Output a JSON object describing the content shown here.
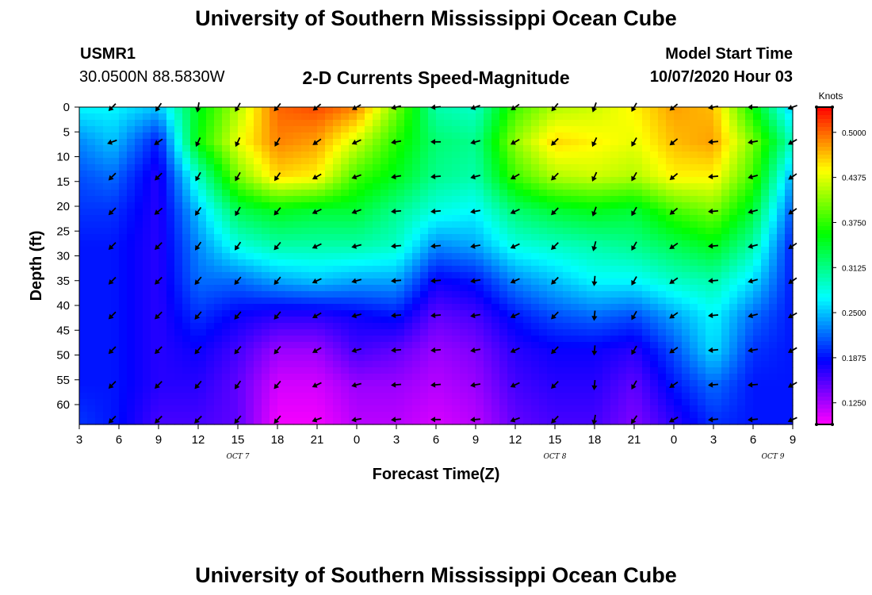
{
  "titles": {
    "top": "University of Southern Mississippi Ocean Cube",
    "bottom": "University of Southern Mississippi Ocean Cube"
  },
  "header": {
    "station": "USMR1",
    "coords": "30.0500N 88.5830W",
    "plot_title": "2-D Currents Speed-Magnitude",
    "model_start_label": "Model Start Time",
    "model_start_value": "10/07/2020 Hour 03"
  },
  "chart_data": {
    "type": "heatmap",
    "title": "2-D Currents Speed-Magnitude",
    "xlabel": "Forecast Time(Z)",
    "ylabel": "Depth (ft)",
    "x_ticks": [
      "3",
      "6",
      "9",
      "12",
      "15",
      "18",
      "21",
      "0",
      "3",
      "6",
      "9",
      "12",
      "15",
      "18",
      "21",
      "0",
      "3",
      "6",
      "9"
    ],
    "x_range_hours": [
      0,
      54
    ],
    "date_labels": [
      {
        "text": "OCT 7",
        "hour": 12
      },
      {
        "text": "OCT 8",
        "hour": 36
      },
      {
        "text": "OCT 9",
        "hour": 52.5
      }
    ],
    "y_ticks": [
      "0",
      "5",
      "10",
      "15",
      "20",
      "25",
      "30",
      "35",
      "40",
      "45",
      "50",
      "55",
      "60"
    ],
    "y_range_ft": [
      0,
      64
    ],
    "colorbar": {
      "label": "Knots",
      "ticks": [
        "0.5000",
        "0.4375",
        "0.3750",
        "0.3125",
        "0.2500",
        "0.1875",
        "0.1250"
      ],
      "tick_values": [
        0.5,
        0.4375,
        0.375,
        0.3125,
        0.25,
        0.1875,
        0.125
      ],
      "min": 0.095,
      "max": 0.535
    },
    "time_hours": [
      0,
      2.5,
      6,
      9,
      12,
      15,
      18,
      21,
      24,
      27,
      30,
      33,
      36,
      39,
      42,
      45,
      48,
      51,
      54
    ],
    "depths_ft": [
      0,
      7,
      14,
      21,
      28,
      35,
      42,
      49,
      56,
      63
    ],
    "speed_knots": [
      [
        0.27,
        0.23,
        0.21,
        0.2,
        0.19,
        0.19,
        0.19,
        0.19,
        0.19,
        0.2
      ],
      [
        0.27,
        0.25,
        0.22,
        0.2,
        0.19,
        0.19,
        0.19,
        0.19,
        0.19,
        0.19
      ],
      [
        0.25,
        0.19,
        0.17,
        0.17,
        0.17,
        0.17,
        0.17,
        0.17,
        0.17,
        0.16
      ],
      [
        0.35,
        0.36,
        0.29,
        0.25,
        0.23,
        0.22,
        0.2,
        0.18,
        0.17,
        0.16
      ],
      [
        0.42,
        0.44,
        0.4,
        0.33,
        0.28,
        0.22,
        0.18,
        0.16,
        0.15,
        0.15
      ],
      [
        0.5,
        0.49,
        0.46,
        0.35,
        0.3,
        0.24,
        0.17,
        0.13,
        0.11,
        0.1
      ],
      [
        0.51,
        0.48,
        0.45,
        0.34,
        0.3,
        0.25,
        0.17,
        0.13,
        0.11,
        0.1
      ],
      [
        0.49,
        0.43,
        0.38,
        0.34,
        0.3,
        0.24,
        0.18,
        0.16,
        0.13,
        0.12
      ],
      [
        0.4,
        0.37,
        0.35,
        0.31,
        0.29,
        0.24,
        0.19,
        0.15,
        0.13,
        0.12
      ],
      [
        0.3,
        0.32,
        0.31,
        0.28,
        0.23,
        0.18,
        0.15,
        0.13,
        0.12,
        0.11
      ],
      [
        0.29,
        0.31,
        0.3,
        0.27,
        0.24,
        0.19,
        0.16,
        0.14,
        0.13,
        0.12
      ],
      [
        0.38,
        0.41,
        0.38,
        0.32,
        0.28,
        0.23,
        0.19,
        0.17,
        0.16,
        0.15
      ],
      [
        0.42,
        0.46,
        0.42,
        0.34,
        0.29,
        0.25,
        0.21,
        0.18,
        0.17,
        0.16
      ],
      [
        0.43,
        0.45,
        0.43,
        0.35,
        0.3,
        0.27,
        0.22,
        0.18,
        0.17,
        0.16
      ],
      [
        0.45,
        0.44,
        0.42,
        0.34,
        0.31,
        0.27,
        0.21,
        0.17,
        0.15,
        0.14
      ],
      [
        0.48,
        0.47,
        0.45,
        0.38,
        0.33,
        0.29,
        0.24,
        0.21,
        0.19,
        0.17
      ],
      [
        0.47,
        0.48,
        0.45,
        0.4,
        0.35,
        0.3,
        0.27,
        0.26,
        0.22,
        0.2
      ],
      [
        0.36,
        0.4,
        0.38,
        0.34,
        0.3,
        0.26,
        0.22,
        0.2,
        0.19,
        0.19
      ],
      [
        0.25,
        0.29,
        0.24,
        0.21,
        0.19,
        0.19,
        0.19,
        0.19,
        0.19,
        0.19
      ]
    ],
    "arrow_times_hours": [
      2.5,
      6,
      9,
      12,
      15,
      18,
      21,
      24,
      27,
      30,
      33,
      36,
      39,
      42,
      45,
      48,
      51,
      54
    ],
    "arrow_depths_ft": [
      0,
      7,
      14,
      21,
      28,
      35,
      42,
      49,
      56,
      63
    ],
    "arrow_direction_deg_from_east": [
      [
        225,
        200,
        225,
        225,
        225,
        225,
        225,
        225,
        225,
        225
      ],
      [
        235,
        215,
        225,
        220,
        225,
        225,
        225,
        225,
        225,
        225
      ],
      [
        260,
        245,
        240,
        235,
        235,
        230,
        230,
        230,
        230,
        225
      ],
      [
        240,
        245,
        240,
        240,
        235,
        230,
        230,
        230,
        235,
        230
      ],
      [
        230,
        240,
        235,
        230,
        230,
        230,
        230,
        230,
        230,
        230
      ],
      [
        220,
        215,
        210,
        205,
        205,
        205,
        210,
        210,
        205,
        200
      ],
      [
        210,
        205,
        200,
        200,
        195,
        195,
        195,
        195,
        195,
        190
      ],
      [
        195,
        190,
        190,
        185,
        185,
        185,
        185,
        185,
        185,
        185
      ],
      [
        185,
        180,
        185,
        185,
        185,
        185,
        185,
        185,
        185,
        180
      ],
      [
        200,
        195,
        195,
        190,
        190,
        190,
        190,
        190,
        190,
        185
      ],
      [
        215,
        210,
        210,
        205,
        205,
        205,
        205,
        205,
        205,
        200
      ],
      [
        230,
        225,
        225,
        225,
        225,
        225,
        225,
        225,
        225,
        225
      ],
      [
        250,
        245,
        245,
        250,
        255,
        265,
        265,
        265,
        265,
        260
      ],
      [
        240,
        240,
        240,
        240,
        240,
        240,
        240,
        240,
        240,
        235
      ],
      [
        220,
        220,
        220,
        220,
        215,
        215,
        215,
        215,
        215,
        210
      ],
      [
        190,
        185,
        185,
        185,
        185,
        185,
        185,
        185,
        185,
        185
      ],
      [
        180,
        190,
        195,
        195,
        195,
        195,
        195,
        190,
        185,
        185
      ],
      [
        200,
        210,
        215,
        215,
        215,
        215,
        210,
        210,
        210,
        205
      ]
    ]
  },
  "colors": {
    "arrow": "#000000",
    "axis": "#000000",
    "colorbar_frame": "#000000"
  },
  "arrow_glyph": "wind-arrow-icon"
}
